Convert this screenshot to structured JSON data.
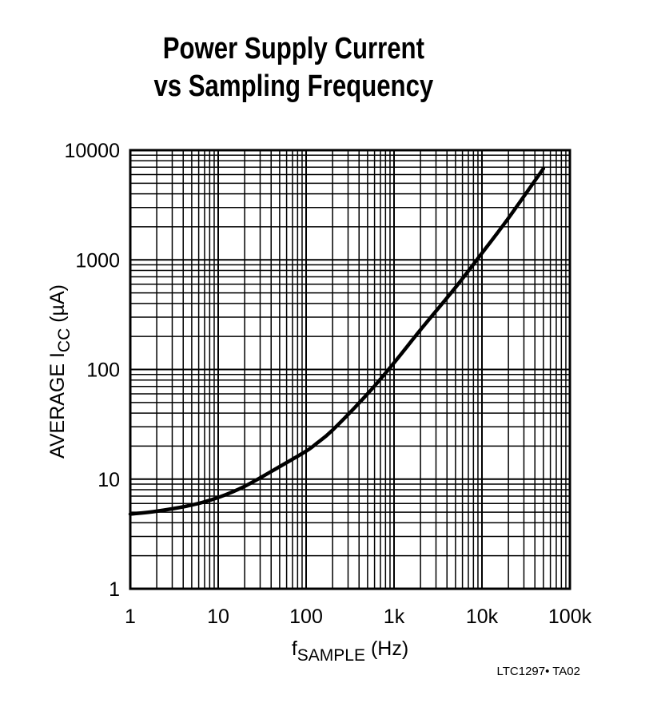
{
  "chart_data": {
    "type": "line",
    "title": [
      "Power Supply Current",
      "vs Sampling Frequency"
    ],
    "xlabel": {
      "main": "f",
      "sub": "SAMPLE",
      "unit": " (Hz)"
    },
    "ylabel": {
      "main": "AVERAGE I",
      "sub": "CC",
      "unit": " (µA)"
    },
    "x_scale": "log",
    "y_scale": "log",
    "xlim": [
      1,
      100000
    ],
    "ylim": [
      1,
      10000
    ],
    "x_ticks": [
      1,
      10,
      100,
      1000,
      10000,
      100000
    ],
    "x_tick_labels": [
      "1",
      "10",
      "100",
      "1k",
      "10k",
      "100k"
    ],
    "y_ticks": [
      1,
      10,
      100,
      1000,
      10000
    ],
    "y_tick_labels": [
      "1",
      "10",
      "100",
      "1000",
      "10000"
    ],
    "grid": true,
    "series": [
      {
        "x": [
          1,
          2,
          5,
          10,
          20,
          50,
          100,
          130,
          200,
          500,
          1000,
          2000,
          5000,
          10000,
          20000,
          50000
        ],
        "y": [
          4.8,
          5.1,
          5.8,
          6.8,
          8.6,
          13,
          18,
          21,
          28,
          60,
          115,
          230,
          560,
          1150,
          2400,
          6800
        ]
      }
    ]
  },
  "footer": "LTC1297• TA02"
}
